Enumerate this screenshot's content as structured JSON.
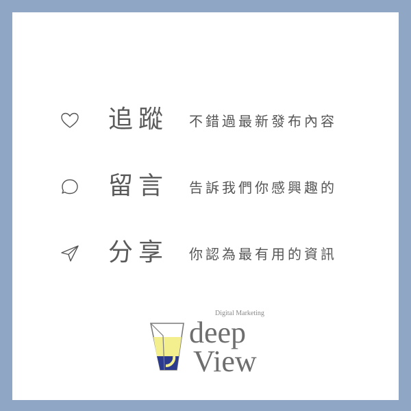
{
  "actions": [
    {
      "icon": "heart-icon",
      "title": "追蹤",
      "description": "不錯過最新發布內容"
    },
    {
      "icon": "speech-bubble-icon",
      "title": "留言",
      "description": "告訴我們你感興趣的"
    },
    {
      "icon": "paper-plane-icon",
      "title": "分享",
      "description": "你認為最有用的資訊"
    }
  ],
  "logo": {
    "tagline": "Digital Marketing",
    "word_top": "deep",
    "word_bottom": "View"
  },
  "colors": {
    "frame": "#8fa7c4",
    "card": "#ffffff",
    "text": "#5a5a5a",
    "logo_yellow": "#f3ee8e",
    "logo_navy": "#2b3a8c"
  }
}
